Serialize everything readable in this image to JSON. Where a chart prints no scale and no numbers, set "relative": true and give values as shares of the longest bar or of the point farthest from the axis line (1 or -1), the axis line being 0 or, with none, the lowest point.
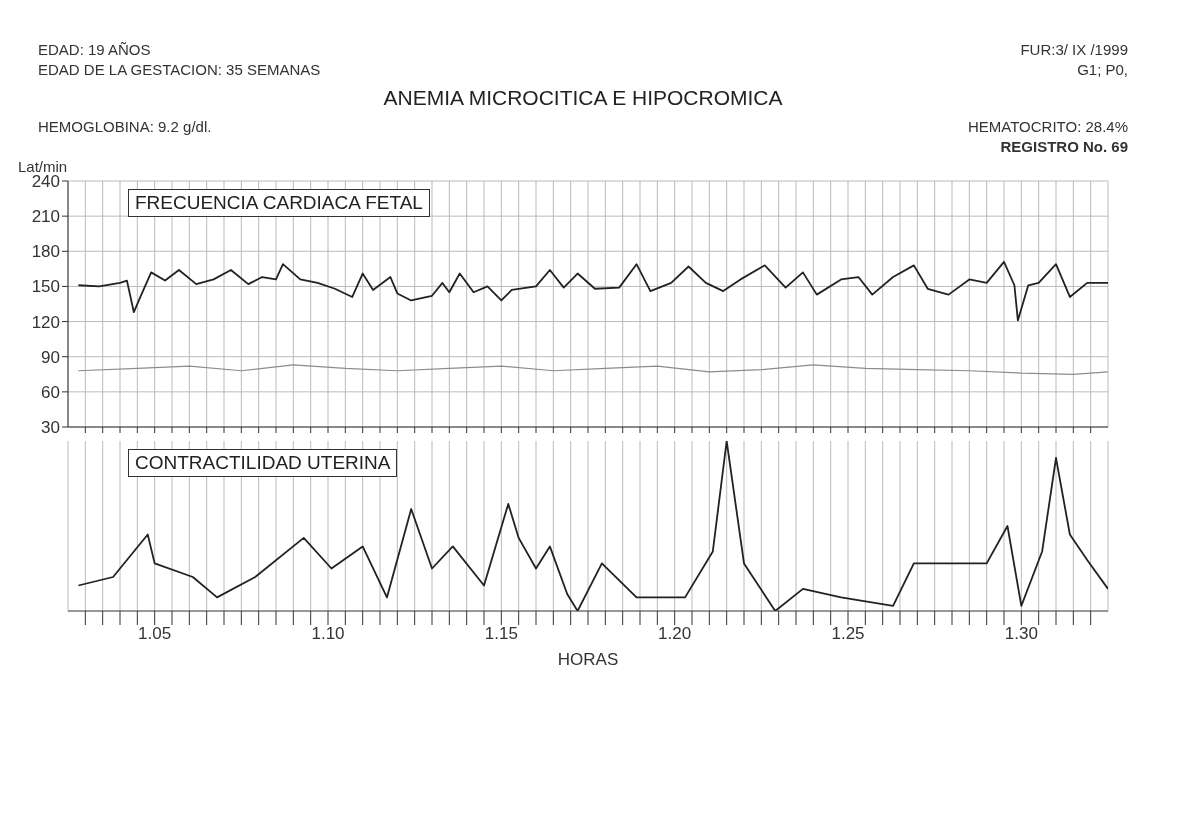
{
  "chart_data": [
    {
      "type": "line",
      "title": "ANEMIA MICROCITICA E HIPOCROMICA",
      "ylabel": "Lat/min",
      "annotations": [
        "EDAD: 19 AÑOS",
        "FUR:3/ IX /1999",
        "EDAD DE LA GESTACION: 35 SEMANAS",
        "G1; P0,",
        "HEMOGLOBINA: 9.2 g/dl.",
        "HEMATOCRITO: 28.4%",
        "REGISTRO No. 69",
        "FRECUENCIA CARDIACA FETAL"
      ],
      "series": [
        {
          "color": "#222222",
          "x": [
            1.028,
            1.034,
            1.04,
            1.042,
            1.044,
            1.046,
            1.049,
            1.053,
            1.057,
            1.062,
            1.067,
            1.072,
            1.077,
            1.081,
            1.085,
            1.087,
            1.092,
            1.097,
            1.102,
            1.107,
            1.11,
            1.113,
            1.118,
            1.12,
            1.124,
            1.13,
            1.133,
            1.135,
            1.138,
            1.142,
            1.146,
            1.15,
            1.153,
            1.16,
            1.164,
            1.168,
            1.172,
            1.177,
            1.184,
            1.189,
            1.193,
            1.199,
            1.204,
            1.209,
            1.214,
            1.219,
            1.226,
            1.232,
            1.237,
            1.241,
            1.248,
            1.253,
            1.257,
            1.263,
            1.269,
            1.273,
            1.279,
            1.285,
            1.29,
            1.295,
            1.298,
            1.299,
            1.302,
            1.305,
            1.31,
            1.314,
            1.319,
            1.325
          ],
          "values": [
            151,
            150,
            153,
            155,
            128,
            142,
            162,
            155,
            164,
            152,
            156,
            164,
            152,
            158,
            156,
            169,
            156,
            153,
            148,
            141,
            161,
            147,
            158,
            144,
            138,
            142,
            153,
            145,
            161,
            145,
            150,
            138,
            147,
            150,
            164,
            149,
            161,
            148,
            149,
            169,
            146,
            153,
            167,
            153,
            146,
            156,
            168,
            149,
            162,
            143,
            156,
            158,
            143,
            158,
            168,
            148,
            143,
            156,
            153,
            171,
            151,
            121,
            151,
            153,
            169,
            141,
            153,
            153
          ]
        },
        {
          "color": "#8c8c8c",
          "x": [
            1.028,
            1.045,
            1.06,
            1.075,
            1.09,
            1.105,
            1.12,
            1.135,
            1.15,
            1.165,
            1.18,
            1.195,
            1.21,
            1.225,
            1.24,
            1.255,
            1.27,
            1.285,
            1.3,
            1.315,
            1.325
          ],
          "values": [
            78,
            80,
            82,
            78,
            83,
            80,
            78,
            80,
            82,
            78,
            80,
            82,
            77,
            79,
            83,
            80,
            79,
            78,
            76,
            75,
            77
          ]
        }
      ],
      "xlim": [
        1.025,
        1.325
      ],
      "ylim": [
        30,
        240
      ],
      "yticks": [
        30,
        60,
        90,
        120,
        150,
        180,
        210,
        240
      ],
      "xticks": [
        {
          "value": 1.03,
          "label": null
        },
        {
          "value": 1.035,
          "label": null
        },
        {
          "value": 1.04,
          "label": null
        },
        {
          "value": 1.045,
          "label": null
        },
        {
          "value": 1.05,
          "label": null
        },
        {
          "value": 1.055,
          "label": null
        },
        {
          "value": 1.06,
          "label": null
        },
        {
          "value": 1.065,
          "label": null
        },
        {
          "value": 1.07,
          "label": null
        },
        {
          "value": 1.075,
          "label": null
        },
        {
          "value": 1.08,
          "label": null
        },
        {
          "value": 1.085,
          "label": null
        },
        {
          "value": 1.09,
          "label": null
        },
        {
          "value": 1.095,
          "label": null
        },
        {
          "value": 1.1,
          "label": null
        },
        {
          "value": 1.105,
          "label": null
        },
        {
          "value": 1.11,
          "label": null
        },
        {
          "value": 1.115,
          "label": null
        },
        {
          "value": 1.12,
          "label": null
        },
        {
          "value": 1.125,
          "label": null
        },
        {
          "value": 1.13,
          "label": null
        },
        {
          "value": 1.135,
          "label": null
        },
        {
          "value": 1.14,
          "label": null
        },
        {
          "value": 1.145,
          "label": null
        },
        {
          "value": 1.15,
          "label": null
        },
        {
          "value": 1.155,
          "label": null
        },
        {
          "value": 1.16,
          "label": null
        },
        {
          "value": 1.165,
          "label": null
        },
        {
          "value": 1.17,
          "label": null
        },
        {
          "value": 1.175,
          "label": null
        },
        {
          "value": 1.18,
          "label": null
        },
        {
          "value": 1.185,
          "label": null
        },
        {
          "value": 1.19,
          "label": null
        },
        {
          "value": 1.195,
          "label": null
        },
        {
          "value": 1.2,
          "label": null
        },
        {
          "value": 1.205,
          "label": null
        },
        {
          "value": 1.21,
          "label": null
        },
        {
          "value": 1.215,
          "label": null
        },
        {
          "value": 1.22,
          "label": null
        },
        {
          "value": 1.225,
          "label": null
        },
        {
          "value": 1.23,
          "label": null
        },
        {
          "value": 1.235,
          "label": null
        },
        {
          "value": 1.24,
          "label": null
        },
        {
          "value": 1.245,
          "label": null
        },
        {
          "value": 1.25,
          "label": null
        },
        {
          "value": 1.255,
          "label": null
        },
        {
          "value": 1.26,
          "label": null
        },
        {
          "value": 1.265,
          "label": null
        },
        {
          "value": 1.27,
          "label": null
        },
        {
          "value": 1.275,
          "label": null
        },
        {
          "value": 1.28,
          "label": null
        },
        {
          "value": 1.285,
          "label": null
        },
        {
          "value": 1.29,
          "label": null
        },
        {
          "value": 1.295,
          "label": null
        },
        {
          "value": 1.3,
          "label": null
        },
        {
          "value": 1.305,
          "label": null
        },
        {
          "value": 1.31,
          "label": null
        },
        {
          "value": 1.315,
          "label": null
        },
        {
          "value": 1.32,
          "label": null
        }
      ],
      "grid": true,
      "tick_labels": "y"
    },
    {
      "type": "line",
      "xlabel": "HORAS",
      "relative": true,
      "annotations": [
        "CONTRACTILIDAD UTERINA"
      ],
      "series": [
        {
          "color": "#222222",
          "x": [
            1.028,
            1.038,
            1.048,
            1.05,
            1.061,
            1.068,
            1.079,
            1.093,
            1.101,
            1.11,
            1.117,
            1.124,
            1.13,
            1.136,
            1.145,
            1.152,
            1.155,
            1.16,
            1.164,
            1.169,
            1.172,
            1.179,
            1.189,
            1.203,
            1.211,
            1.215,
            1.22,
            1.229,
            1.237,
            1.248,
            1.263,
            1.269,
            1.28,
            1.29,
            1.296,
            1.3,
            1.306,
            1.31,
            1.314,
            1.319,
            1.325
          ],
          "values": [
            0.15,
            0.2,
            0.45,
            0.28,
            0.2,
            0.08,
            0.2,
            0.43,
            0.25,
            0.38,
            0.08,
            0.6,
            0.25,
            0.38,
            0.15,
            0.63,
            0.43,
            0.25,
            0.38,
            0.1,
            0,
            0.28,
            0.08,
            0.08,
            0.35,
            1,
            0.28,
            0,
            0.13,
            0.08,
            0.03,
            0.28,
            0.28,
            0.28,
            0.5,
            0.03,
            0.35,
            0.9,
            0.45,
            0.3,
            0.13
          ]
        }
      ],
      "xlim": [
        1.025,
        1.325
      ],
      "xticks": [
        {
          "value": 1.03,
          "label": null
        },
        {
          "value": 1.035,
          "label": null
        },
        {
          "value": 1.04,
          "label": null
        },
        {
          "value": 1.045,
          "label": null
        },
        1.05,
        {
          "value": 1.055,
          "label": null
        },
        {
          "value": 1.06,
          "label": null
        },
        {
          "value": 1.065,
          "label": null
        },
        {
          "value": 1.07,
          "label": null
        },
        {
          "value": 1.075,
          "label": null
        },
        {
          "value": 1.08,
          "label": null
        },
        {
          "value": 1.085,
          "label": null
        },
        {
          "value": 1.09,
          "label": null
        },
        {
          "value": 1.095,
          "label": null
        },
        {
          "value": 1.1,
          "label": "1.10"
        },
        {
          "value": 1.105,
          "label": null
        },
        {
          "value": 1.11,
          "label": null
        },
        {
          "value": 1.115,
          "label": null
        },
        {
          "value": 1.12,
          "label": null
        },
        {
          "value": 1.125,
          "label": null
        },
        {
          "value": 1.13,
          "label": null
        },
        {
          "value": 1.135,
          "label": null
        },
        {
          "value": 1.14,
          "label": null
        },
        {
          "value": 1.145,
          "label": null
        },
        1.15,
        {
          "value": 1.155,
          "label": null
        },
        {
          "value": 1.16,
          "label": null
        },
        {
          "value": 1.165,
          "label": null
        },
        {
          "value": 1.17,
          "label": null
        },
        {
          "value": 1.175,
          "label": null
        },
        {
          "value": 1.18,
          "label": null
        },
        {
          "value": 1.185,
          "label": null
        },
        {
          "value": 1.19,
          "label": null
        },
        {
          "value": 1.195,
          "label": null
        },
        {
          "value": 1.2,
          "label": "1.20"
        },
        {
          "value": 1.205,
          "label": null
        },
        {
          "value": 1.21,
          "label": null
        },
        {
          "value": 1.215,
          "label": null
        },
        {
          "value": 1.22,
          "label": null
        },
        {
          "value": 1.225,
          "label": null
        },
        {
          "value": 1.23,
          "label": null
        },
        {
          "value": 1.235,
          "label": null
        },
        {
          "value": 1.24,
          "label": null
        },
        {
          "value": 1.245,
          "label": null
        },
        1.25,
        {
          "value": 1.255,
          "label": null
        },
        {
          "value": 1.26,
          "label": null
        },
        {
          "value": 1.265,
          "label": null
        },
        {
          "value": 1.27,
          "label": null
        },
        {
          "value": 1.275,
          "label": null
        },
        {
          "value": 1.28,
          "label": null
        },
        {
          "value": 1.285,
          "label": null
        },
        {
          "value": 1.29,
          "label": null
        },
        {
          "value": 1.295,
          "label": null
        },
        {
          "value": 1.3,
          "label": "1.30"
        },
        {
          "value": 1.305,
          "label": null
        },
        {
          "value": 1.31,
          "label": null
        },
        {
          "value": 1.315,
          "label": null
        },
        {
          "value": 1.32,
          "label": null
        }
      ],
      "grid": "x",
      "tick_labels": "x"
    }
  ]
}
